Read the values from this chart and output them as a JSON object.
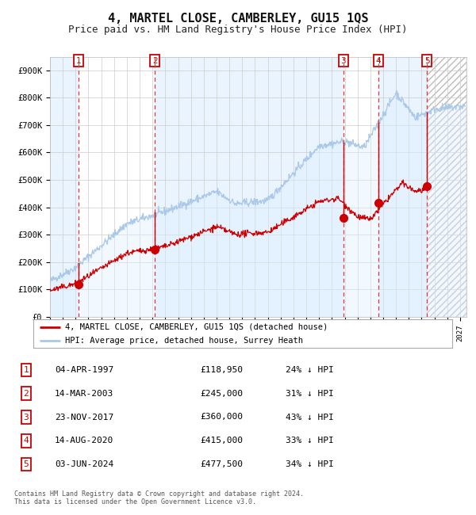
{
  "title": "4, MARTEL CLOSE, CAMBERLEY, GU15 1QS",
  "subtitle": "Price paid vs. HM Land Registry's House Price Index (HPI)",
  "title_fontsize": 11,
  "subtitle_fontsize": 9,
  "ylim": [
    0,
    950000
  ],
  "yticks": [
    0,
    100000,
    200000,
    300000,
    400000,
    500000,
    600000,
    700000,
    800000,
    900000
  ],
  "ytick_labels": [
    "£0",
    "£100K",
    "£200K",
    "£300K",
    "£400K",
    "£500K",
    "£600K",
    "£700K",
    "£800K",
    "£900K"
  ],
  "xlim_start": 1995.0,
  "xlim_end": 2027.5,
  "grid_color": "#cccccc",
  "background_color": "#ffffff",
  "hpi_line_color": "#aac8e8",
  "hpi_fill_color": "#ddeeff",
  "price_line_color": "#cc0000",
  "dot_color": "#cc0000",
  "dashed_line_color": "#ee3333",
  "sale_box_color": "#cc0000",
  "legend_line_red": "#cc0000",
  "legend_line_blue": "#aac8e8",
  "transactions": [
    {
      "num": 1,
      "year": 1997.25,
      "price": 118950,
      "label": "1"
    },
    {
      "num": 2,
      "year": 2003.19,
      "price": 245000,
      "label": "2"
    },
    {
      "num": 3,
      "year": 2017.9,
      "price": 360000,
      "label": "3"
    },
    {
      "num": 4,
      "year": 2020.62,
      "price": 415000,
      "label": "4"
    },
    {
      "num": 5,
      "year": 2024.42,
      "price": 477500,
      "label": "5"
    }
  ],
  "table_entries": [
    {
      "num": "1",
      "date": "04-APR-1997",
      "price": "£118,950",
      "hpi": "24% ↓ HPI"
    },
    {
      "num": "2",
      "date": "14-MAR-2003",
      "price": "£245,000",
      "hpi": "31% ↓ HPI"
    },
    {
      "num": "3",
      "date": "23-NOV-2017",
      "price": "£360,000",
      "hpi": "43% ↓ HPI"
    },
    {
      "num": "4",
      "date": "14-AUG-2020",
      "price": "£415,000",
      "hpi": "33% ↓ HPI"
    },
    {
      "num": "5",
      "date": "03-JUN-2024",
      "price": "£477,500",
      "hpi": "34% ↓ HPI"
    }
  ],
  "legend_entries": [
    "4, MARTEL CLOSE, CAMBERLEY, GU15 1QS (detached house)",
    "HPI: Average price, detached house, Surrey Heath"
  ],
  "footer_text": "Contains HM Land Registry data © Crown copyright and database right 2024.\nThis data is licensed under the Open Government Licence v3.0.",
  "shaded_intervals": [
    [
      1995.0,
      1997.25
    ],
    [
      2003.19,
      2017.9
    ],
    [
      2020.62,
      2024.42
    ]
  ],
  "future_hatch_start": 2024.42
}
